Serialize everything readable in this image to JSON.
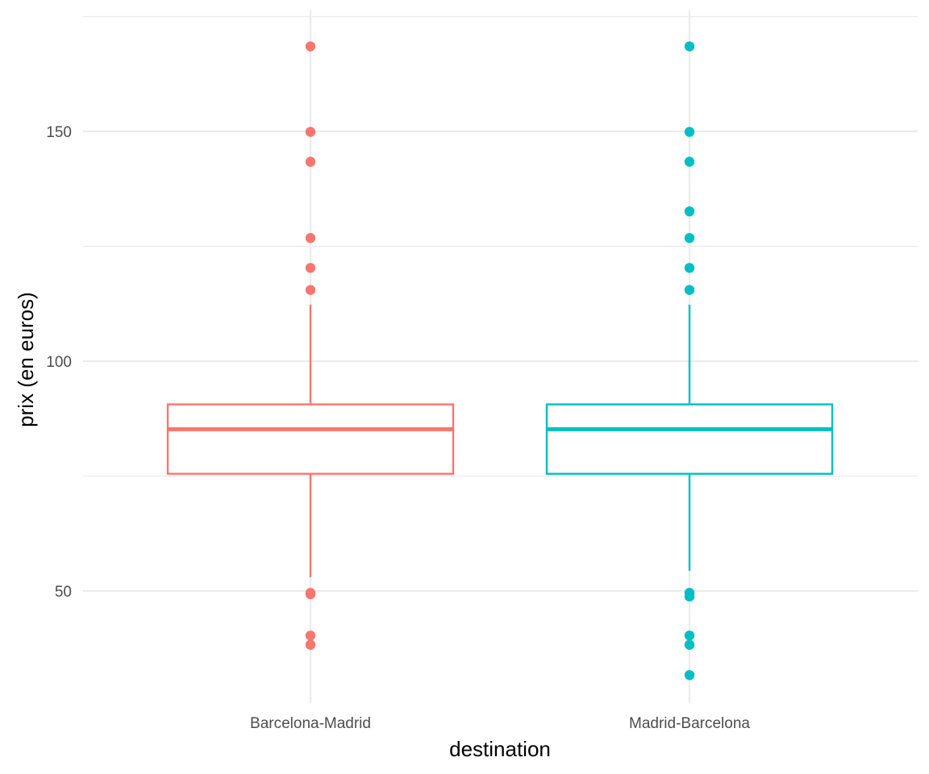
{
  "chart_data": {
    "type": "boxplot",
    "xlabel": "destination",
    "ylabel": "prix (en euros)",
    "ylim": [
      30,
      172
    ],
    "yticks": [
      50,
      100,
      150
    ],
    "grid": true,
    "legend": "none",
    "categories": [
      "Barcelona-Madrid",
      "Madrid-Barcelona"
    ],
    "boxes": [
      {
        "category": "Barcelona-Madrid",
        "color": "#F8766D",
        "lower_whisker": 53,
        "q1": 75.5,
        "median": 85.2,
        "q3": 90.6,
        "upper_whisker": 112.3,
        "outliers": [
          168.5,
          149.9,
          143.4,
          126.8,
          120.3,
          115.5,
          49.3,
          49.6,
          40.3,
          38.3
        ]
      },
      {
        "category": "Madrid-Barcelona",
        "color": "#00BFC4",
        "lower_whisker": 54.4,
        "q1": 75.5,
        "median": 85.2,
        "q3": 90.6,
        "upper_whisker": 112.3,
        "outliers": [
          168.5,
          149.9,
          143.4,
          132.6,
          126.8,
          120.3,
          115.5,
          49.6,
          48.8,
          40.3,
          38.3,
          31.7
        ]
      }
    ]
  }
}
